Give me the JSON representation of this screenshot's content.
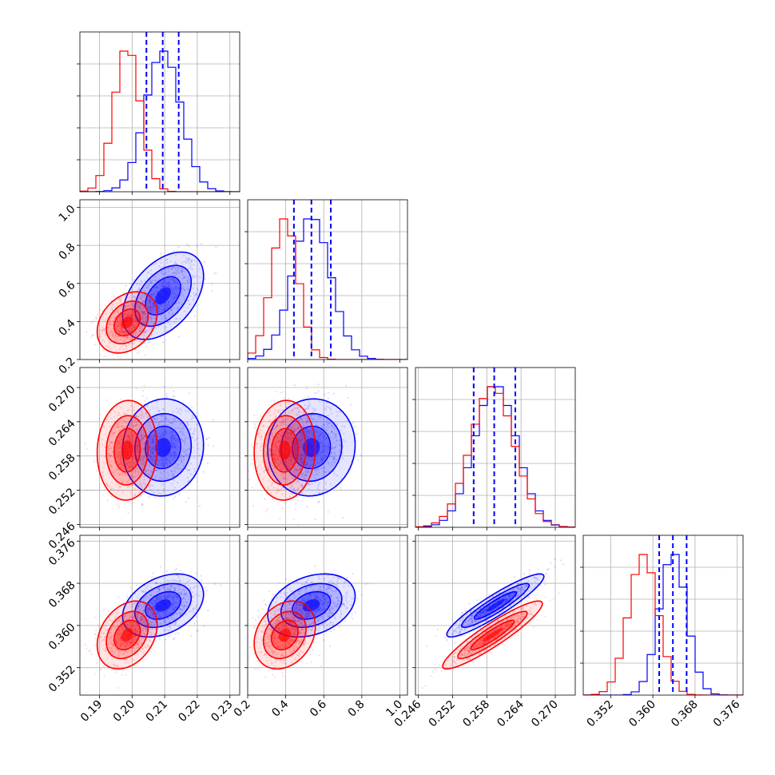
{
  "chart_data": {
    "type": "corner",
    "grid": true,
    "parameters": 4,
    "colors": {
      "blue": "#0000ff",
      "red": "#ff0000"
    },
    "series": [
      {
        "color": "#0000ff",
        "mean": [
          0.2095,
          0.535,
          0.2595,
          0.3638
        ],
        "std": [
          0.0054,
          0.1,
          0.0037,
          0.0026
        ],
        "corr": [
          [
            1,
            0.45,
            0.05,
            0.35
          ],
          [
            0.45,
            1,
            0.05,
            0.3
          ],
          [
            0.05,
            0.05,
            1,
            0.92
          ],
          [
            0.35,
            0.3,
            0.92,
            1
          ]
        ]
      },
      {
        "color": "#ff0000",
        "mean": [
          0.1985,
          0.395,
          0.259,
          0.3582
        ],
        "std": [
          0.004,
          0.07,
          0.0038,
          0.0028
        ],
        "corr": [
          [
            1,
            0.3,
            0.05,
            0.3
          ],
          [
            0.3,
            1,
            0.05,
            0.25
          ],
          [
            0.05,
            0.05,
            1,
            0.92
          ],
          [
            0.3,
            0.25,
            0.92,
            1
          ]
        ]
      }
    ],
    "quantile_lines": [
      {
        "param": 0,
        "color": "#0000ff",
        "values": [
          0.2044,
          0.2094,
          0.2143
        ]
      },
      {
        "param": 1,
        "color": "#0000ff",
        "values": [
          0.443,
          0.535,
          0.637
        ]
      },
      {
        "param": 2,
        "color": "#0000ff",
        "values": [
          0.2557,
          0.2593,
          0.263
        ]
      },
      {
        "param": 3,
        "color": "#0000ff",
        "values": [
          0.3612,
          0.3638,
          0.3664
        ]
      }
    ],
    "ranges": [
      [
        0.184,
        0.233
      ],
      [
        0.2,
        1.04
      ],
      [
        0.2455,
        0.2735
      ],
      [
        0.3468,
        0.3771
      ]
    ],
    "ticks": [
      {
        "values": [
          0.19,
          0.2,
          0.21,
          0.22,
          0.23
        ],
        "labels": [
          "0.19",
          "0.20",
          "0.21",
          "0.22",
          "0.23"
        ]
      },
      {
        "values": [
          0.2,
          0.4,
          0.6,
          0.8,
          1.0
        ],
        "labels": [
          "0.2",
          "0.4",
          "0.6",
          "0.8",
          "1.0"
        ]
      },
      {
        "values": [
          0.246,
          0.252,
          0.258,
          0.264,
          0.27
        ],
        "labels": [
          "0.246",
          "0.252",
          "0.258",
          "0.264",
          "0.270"
        ]
      },
      {
        "values": [
          0.352,
          0.36,
          0.368,
          0.376
        ],
        "labels": [
          "0.352",
          "0.360",
          "0.368",
          "0.376"
        ]
      }
    ]
  }
}
